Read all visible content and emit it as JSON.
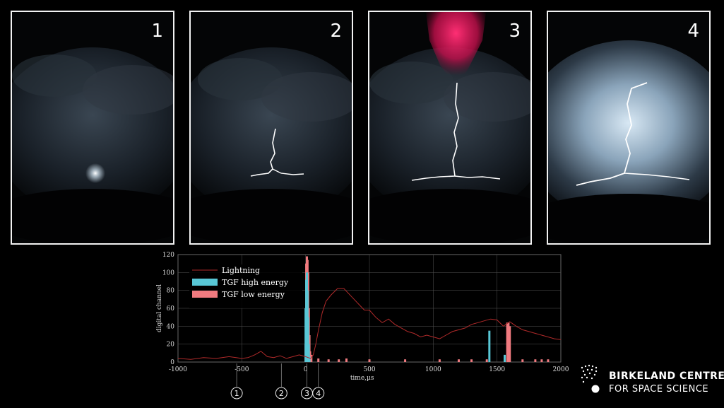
{
  "panels": [
    {
      "number": "1",
      "stage": "initial-flash"
    },
    {
      "number": "2",
      "stage": "leader"
    },
    {
      "number": "3",
      "stage": "tgf-upward-jet"
    },
    {
      "number": "4",
      "stage": "full-discharge"
    }
  ],
  "colors": {
    "lightning": "#b02a2a",
    "tgf_high": "#58c7d6",
    "tgf_low": "#f07a7f",
    "jet": "#e0145a",
    "background": "#000000",
    "border": "#f2f2f2"
  },
  "chart_data": {
    "type": "line+bar",
    "xlabel": "time,µs",
    "ylabel": "digital channel",
    "xlim": [
      -1000,
      2000
    ],
    "ylim": [
      0,
      120
    ],
    "xticks": [
      -1000,
      -500,
      0,
      500,
      1000,
      1500,
      2000
    ],
    "yticks": [
      0,
      20,
      40,
      60,
      80,
      100,
      120
    ],
    "grid": true,
    "legend_position": "top-left",
    "legend": [
      "Lightning",
      "TGF high energy",
      "TGF low energy"
    ],
    "series": [
      {
        "name": "Lightning",
        "type": "line",
        "x": [
          -1000,
          -900,
          -800,
          -700,
          -600,
          -500,
          -450,
          -400,
          -350,
          -300,
          -250,
          -200,
          -150,
          -100,
          -50,
          0,
          20,
          40,
          60,
          80,
          100,
          130,
          160,
          200,
          250,
          300,
          340,
          380,
          420,
          460,
          500,
          550,
          600,
          650,
          700,
          750,
          800,
          850,
          900,
          950,
          1000,
          1050,
          1100,
          1150,
          1200,
          1250,
          1300,
          1350,
          1400,
          1450,
          1500,
          1550,
          1600,
          1650,
          1700,
          1750,
          1800,
          1850,
          1900,
          1950,
          2000
        ],
        "y": [
          4,
          3,
          5,
          4,
          6,
          4,
          5,
          8,
          12,
          6,
          5,
          7,
          4,
          6,
          8,
          6,
          5,
          4,
          8,
          20,
          35,
          55,
          68,
          75,
          82,
          82,
          76,
          70,
          64,
          58,
          58,
          50,
          44,
          48,
          42,
          38,
          34,
          32,
          28,
          30,
          28,
          26,
          30,
          34,
          36,
          38,
          42,
          44,
          46,
          48,
          47,
          40,
          45,
          40,
          36,
          34,
          32,
          30,
          28,
          26,
          25
        ]
      },
      {
        "name": "TGF high energy",
        "type": "bar",
        "x": [
          0,
          5,
          10,
          15,
          20,
          25,
          30,
          1440,
          1560
        ],
        "y": [
          60,
          92,
          100,
          80,
          50,
          20,
          6,
          35,
          8
        ]
      },
      {
        "name": "TGF low energy",
        "type": "bar",
        "x": [
          0,
          5,
          10,
          15,
          20,
          25,
          30,
          35,
          45,
          100,
          180,
          260,
          320,
          500,
          780,
          1050,
          1200,
          1300,
          1420,
          1580,
          1590,
          1600,
          1700,
          1800,
          1850,
          1900
        ],
        "y": [
          20,
          110,
          118,
          114,
          100,
          60,
          30,
          12,
          8,
          4,
          3,
          3,
          4,
          3,
          3,
          3,
          3,
          3,
          3,
          44,
          44,
          40,
          3,
          3,
          3,
          3
        ]
      }
    ],
    "time_markers": [
      "1",
      "2",
      "3",
      "4"
    ],
    "marker_times": [
      -540,
      -190,
      10,
      100
    ]
  },
  "logo": {
    "line1": "BIRKELAND CENTRE",
    "line2": "FOR SPACE SCIENCE"
  }
}
